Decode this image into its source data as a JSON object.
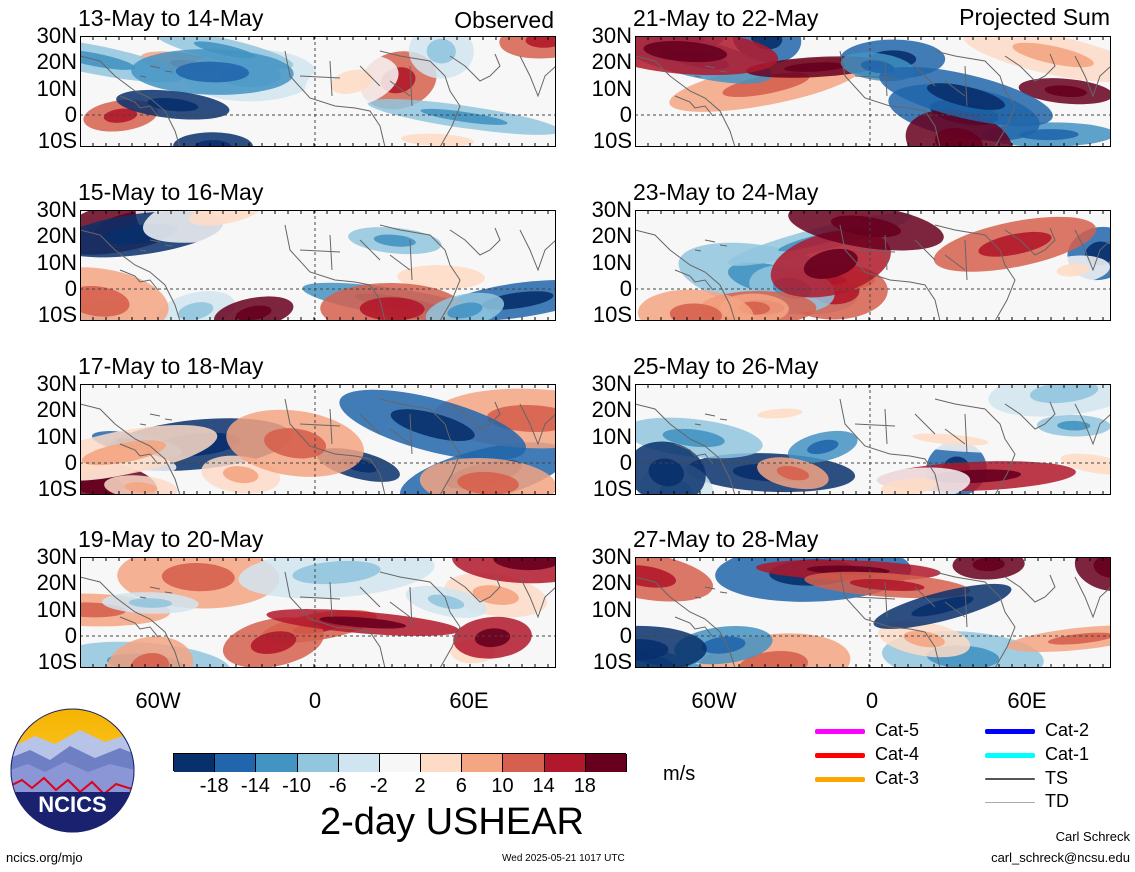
{
  "header": {
    "left_tag": "Observed",
    "right_tag": "Projected Sum"
  },
  "latitude_labels": [
    "30N",
    "20N",
    "10N",
    "0",
    "10S"
  ],
  "longitude_labels": [
    "60W",
    "0",
    "60E"
  ],
  "panels_left": [
    {
      "title": "13-May to 14-May"
    },
    {
      "title": "15-May to 16-May"
    },
    {
      "title": "17-May to 18-May"
    },
    {
      "title": "19-May to 20-May"
    }
  ],
  "panels_right": [
    {
      "title": "21-May to 22-May"
    },
    {
      "title": "23-May to 24-May"
    },
    {
      "title": "25-May to 26-May"
    },
    {
      "title": "27-May to 28-May"
    }
  ],
  "colorbar": {
    "ticks": [
      "-18",
      "-14",
      "-10",
      "-6",
      "-2",
      "2",
      "6",
      "10",
      "14",
      "18"
    ],
    "colors": [
      "#08306b",
      "#2166ac",
      "#4393c3",
      "#92c5de",
      "#d1e5f0",
      "#f7f7f7",
      "#fddbc7",
      "#f4a582",
      "#d6604d",
      "#b2182b",
      "#67001f"
    ],
    "units": "m/s",
    "title": "2-day USHEAR"
  },
  "legend": [
    {
      "label": "Cat-5",
      "color": "#ff00ff"
    },
    {
      "label": "Cat-4",
      "color": "#ff0000"
    },
    {
      "label": "Cat-3",
      "color": "#ffa500"
    },
    {
      "label": "Cat-2",
      "color": "#0000ff"
    },
    {
      "label": "Cat-1",
      "color": "#00ffff"
    },
    {
      "label": "TS",
      "color": "#555555"
    },
    {
      "label": "TD",
      "color": "#aaaaaa"
    }
  ],
  "logo": {
    "text": "NCICS"
  },
  "footer": {
    "url": "ncics.org/mjo",
    "timestamp": "Wed 2025-05-21 1017 UTC",
    "author": "Carl Schreck",
    "email": "carl_schreck@ncsu.edu"
  }
}
